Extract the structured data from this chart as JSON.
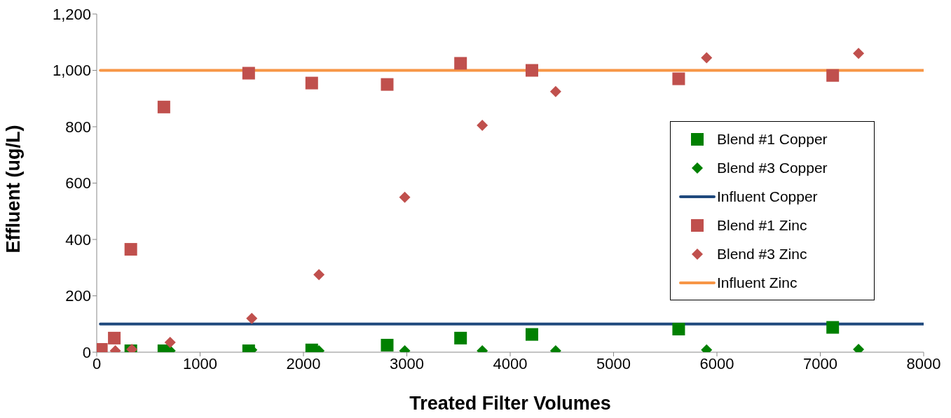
{
  "chart_data": {
    "type": "scatter",
    "xlabel": "Treated Filter Volumes",
    "ylabel": "Effluent (ug/L)",
    "xlim": [
      0,
      8000
    ],
    "xticks": [
      0,
      1000,
      2000,
      3000,
      4000,
      5000,
      6000,
      7000,
      8000
    ],
    "ylim": [
      0,
      1200
    ],
    "yticks": [
      0,
      200,
      400,
      600,
      800,
      {
        "value": 1000,
        "label": "1,000"
      },
      {
        "value": 1200,
        "label": "1,200"
      }
    ],
    "grid": false,
    "legend": "right",
    "series": [
      {
        "name": "Blend #1 Copper",
        "color": "#008000",
        "marker": "square",
        "x": [
          330,
          650,
          1470,
          2080,
          2810,
          3520,
          4210,
          5630,
          7120
        ],
        "values": [
          5,
          5,
          5,
          8,
          25,
          50,
          63,
          82,
          88
        ]
      },
      {
        "name": "Blend #3 Copper",
        "color": "#008000",
        "marker": "diamond",
        "x": [
          710,
          1500,
          2150,
          2980,
          3730,
          4440,
          5900,
          7370
        ],
        "values": [
          5,
          8,
          5,
          5,
          5,
          5,
          8,
          10
        ]
      },
      {
        "name": "Influent Copper",
        "type": "line",
        "color": "#1f497d",
        "marker": "none",
        "x": [
          35,
          8000
        ],
        "values": [
          100,
          100
        ]
      },
      {
        "name": "Blend #1 Zinc",
        "color": "#c0504d",
        "marker": "square",
        "x": [
          45,
          170,
          330,
          650,
          1470,
          2080,
          2810,
          3520,
          4210,
          5630,
          7120
        ],
        "values": [
          10,
          50,
          365,
          870,
          990,
          955,
          950,
          1025,
          1000,
          970,
          982
        ]
      },
      {
        "name": "Blend #3 Zinc",
        "color": "#c0504d",
        "marker": "diamond",
        "x": [
          180,
          340,
          710,
          1500,
          2150,
          2980,
          3730,
          4440,
          5900,
          7370
        ],
        "values": [
          5,
          10,
          35,
          120,
          275,
          550,
          805,
          925,
          1045,
          1060
        ]
      },
      {
        "name": "Influent Zinc",
        "type": "line",
        "color": "#f79646",
        "marker": "none",
        "x": [
          35,
          8000
        ],
        "values": [
          1000,
          1000
        ]
      }
    ]
  }
}
